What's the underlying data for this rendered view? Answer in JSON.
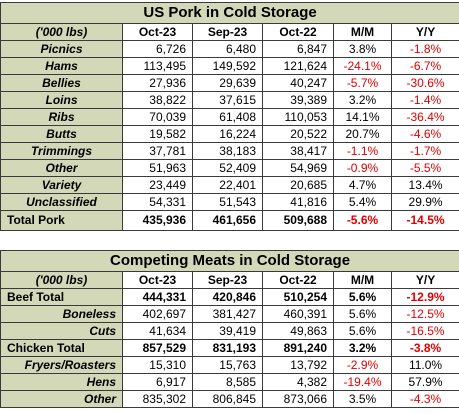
{
  "pork": {
    "title": "US Pork in Cold Storage",
    "headers": [
      "('000 lbs)",
      "Oct-23",
      "Sep-23",
      "Oct-22",
      "M/M",
      "Y/Y"
    ],
    "rows": [
      {
        "label": "Picnics",
        "oct23": "6,726",
        "sep23": "6,480",
        "oct22": "6,847",
        "mm": "3.8%",
        "yy": "-1.8%"
      },
      {
        "label": "Hams",
        "oct23": "113,495",
        "sep23": "149,592",
        "oct22": "121,624",
        "mm": "-24.1%",
        "yy": "-6.7%"
      },
      {
        "label": "Bellies",
        "oct23": "27,936",
        "sep23": "29,639",
        "oct22": "40,247",
        "mm": "-5.7%",
        "yy": "-30.6%"
      },
      {
        "label": "Loins",
        "oct23": "38,822",
        "sep23": "37,615",
        "oct22": "39,389",
        "mm": "3.2%",
        "yy": "-1.4%"
      },
      {
        "label": "Ribs",
        "oct23": "70,039",
        "sep23": "61,408",
        "oct22": "110,053",
        "mm": "14.1%",
        "yy": "-36.4%"
      },
      {
        "label": "Butts",
        "oct23": "19,582",
        "sep23": "16,224",
        "oct22": "20,522",
        "mm": "20.7%",
        "yy": "-4.6%"
      },
      {
        "label": "Trimmings",
        "oct23": "37,781",
        "sep23": "38,183",
        "oct22": "38,417",
        "mm": "-1.1%",
        "yy": "-1.7%"
      },
      {
        "label": "Other",
        "oct23": "51,963",
        "sep23": "52,409",
        "oct22": "54,969",
        "mm": "-0.9%",
        "yy": "-5.5%"
      },
      {
        "label": "Variety",
        "oct23": "23,449",
        "sep23": "22,401",
        "oct22": "20,685",
        "mm": "4.7%",
        "yy": "13.4%"
      },
      {
        "label": "Unclassified",
        "oct23": "54,331",
        "sep23": "51,543",
        "oct22": "41,816",
        "mm": "5.4%",
        "yy": "29.9%"
      }
    ],
    "total": {
      "label": "Total Pork",
      "oct23": "435,936",
      "sep23": "461,656",
      "oct22": "509,688",
      "mm": "-5.6%",
      "yy": "-14.5%"
    }
  },
  "meats": {
    "title": "Competing Meats in Cold Storage",
    "headers": [
      "('000 lbs)",
      "Oct-23",
      "Sep-23",
      "Oct-22",
      "M/M",
      "Y/Y"
    ],
    "beef_total": {
      "label": "Beef Total",
      "oct23": "444,331",
      "sep23": "420,846",
      "oct22": "510,254",
      "mm": "5.6%",
      "yy": "-12.9%"
    },
    "beef_rows": [
      {
        "label": "Boneless",
        "oct23": "402,697",
        "sep23": "381,427",
        "oct22": "460,391",
        "mm": "5.6%",
        "yy": "-12.5%"
      },
      {
        "label": "Cuts",
        "oct23": "41,634",
        "sep23": "39,419",
        "oct22": "49,863",
        "mm": "5.6%",
        "yy": "-16.5%"
      }
    ],
    "chicken_total": {
      "label": "Chicken Total",
      "oct23": "857,529",
      "sep23": "831,193",
      "oct22": "891,240",
      "mm": "3.2%",
      "yy": "-3.8%"
    },
    "chicken_rows": [
      {
        "label": "Fryers/Roasters",
        "oct23": "15,310",
        "sep23": "15,763",
        "oct22": "13,792",
        "mm": "-2.9%",
        "yy": "11.0%"
      },
      {
        "label": "Hens",
        "oct23": "6,917",
        "sep23": "8,585",
        "oct22": "4,382",
        "mm": "-19.4%",
        "yy": "57.9%"
      },
      {
        "label": "Other",
        "oct23": "835,302",
        "sep23": "806,845",
        "oct22": "873,066",
        "mm": "3.5%",
        "yy": "-4.3%"
      }
    ]
  }
}
